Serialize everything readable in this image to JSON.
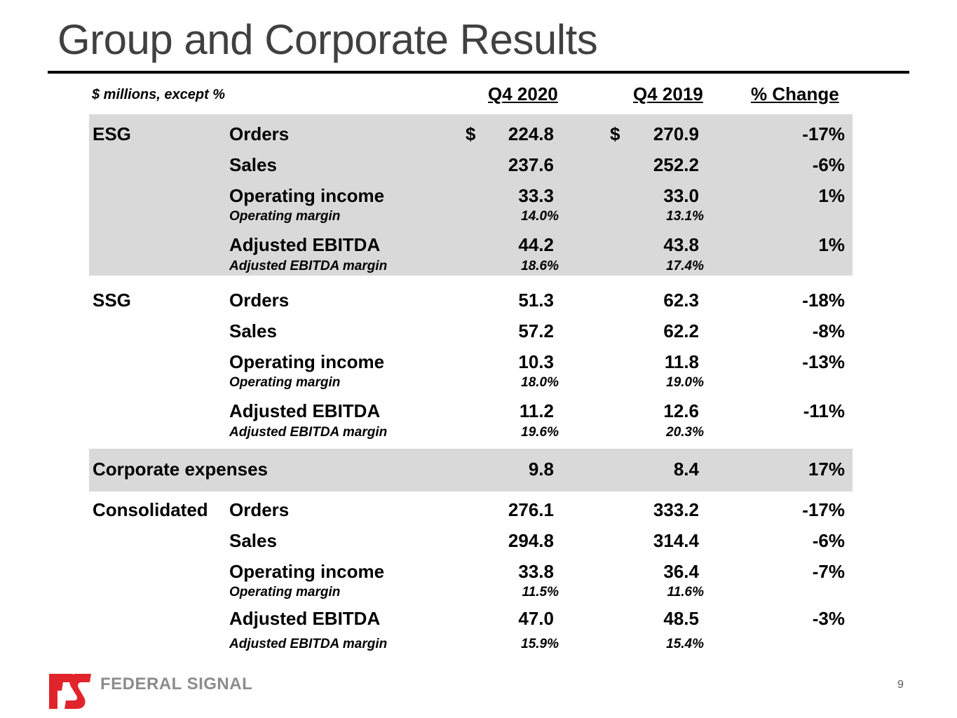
{
  "title": "Group and Corporate Results",
  "header": {
    "units": "$ millions, except %",
    "col1": "Q4 2020",
    "col2": "Q4 2019",
    "col3": "% Change"
  },
  "currency_symbol": "$",
  "esg": {
    "segment": "ESG",
    "orders": {
      "label": "Orders",
      "q4_2020": "224.8",
      "q4_2019": "270.9",
      "change": "-17%"
    },
    "sales": {
      "label": "Sales",
      "q4_2020": "237.6",
      "q4_2019": "252.2",
      "change": "-6%"
    },
    "op_income": {
      "label": "Operating income",
      "q4_2020": "33.3",
      "q4_2019": "33.0",
      "change": "1%"
    },
    "op_margin": {
      "label": "Operating margin",
      "q4_2020": "14.0%",
      "q4_2019": "13.1%"
    },
    "ebitda": {
      "label": "Adjusted EBITDA",
      "q4_2020": "44.2",
      "q4_2019": "43.8",
      "change": "1%"
    },
    "ebitda_margin": {
      "label": "Adjusted EBITDA margin",
      "q4_2020": "18.6%",
      "q4_2019": "17.4%"
    }
  },
  "ssg": {
    "segment": "SSG",
    "orders": {
      "label": "Orders",
      "q4_2020": "51.3",
      "q4_2019": "62.3",
      "change": "-18%"
    },
    "sales": {
      "label": "Sales",
      "q4_2020": "57.2",
      "q4_2019": "62.2",
      "change": "-8%"
    },
    "op_income": {
      "label": "Operating income",
      "q4_2020": "10.3",
      "q4_2019": "11.8",
      "change": "-13%"
    },
    "op_margin": {
      "label": "Operating margin",
      "q4_2020": "18.0%",
      "q4_2019": "19.0%"
    },
    "ebitda": {
      "label": "Adjusted EBITDA",
      "q4_2020": "11.2",
      "q4_2019": "12.6",
      "change": "-11%"
    },
    "ebitda_margin": {
      "label": "Adjusted EBITDA margin",
      "q4_2020": "19.6%",
      "q4_2019": "20.3%"
    }
  },
  "corporate": {
    "label": "Corporate expenses",
    "q4_2020": "9.8",
    "q4_2019": "8.4",
    "change": "17%"
  },
  "consolidated": {
    "segment": "Consolidated",
    "orders": {
      "label": "Orders",
      "q4_2020": "276.1",
      "q4_2019": "333.2",
      "change": "-17%"
    },
    "sales": {
      "label": "Sales",
      "q4_2020": "294.8",
      "q4_2019": "314.4",
      "change": "-6%"
    },
    "op_income": {
      "label": "Operating income",
      "q4_2020": "33.8",
      "q4_2019": "36.4",
      "change": "-7%"
    },
    "op_margin": {
      "label": "Operating margin",
      "q4_2020": "11.5%",
      "q4_2019": "11.6%"
    },
    "ebitda": {
      "label": "Adjusted EBITDA",
      "q4_2020": "47.0",
      "q4_2019": "48.5",
      "change": "-3%"
    },
    "ebitda_margin": {
      "label": "Adjusted EBITDA margin",
      "q4_2020": "15.9%",
      "q4_2019": "15.4%"
    }
  },
  "footer": {
    "logo_text": "FEDERAL SIGNAL",
    "page_number": "9",
    "logo_color": "#e1242b"
  },
  "colors": {
    "band": "#d9d9d9",
    "title": "#404040",
    "logo_text": "#8c8c8c"
  }
}
